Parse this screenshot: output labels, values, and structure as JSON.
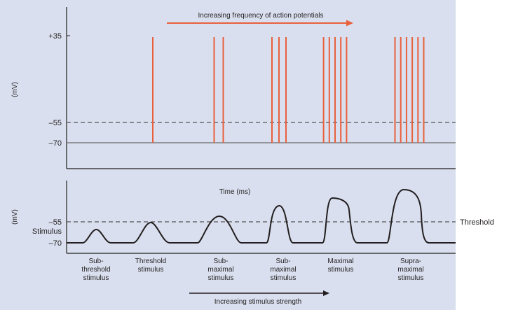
{
  "colors": {
    "panel_bg": "#d9dfee",
    "spike": "#e8603c",
    "arrow_top": "#e8603c",
    "axis": "#231f20",
    "dashed": "#555555",
    "baseline": "#6a6a6a",
    "curve": "#231f20"
  },
  "top_panel": {
    "y_label": "(mV)",
    "ticks": [
      "+35",
      "–55",
      "–70"
    ],
    "arrow_caption": "Increasing frequency of action potentials",
    "spike_groups": [
      1,
      2,
      3,
      5,
      6
    ]
  },
  "bottom_panel": {
    "y_label": "(mV)",
    "ticks": [
      "–55",
      "–70"
    ],
    "stimulus_label": "Stimulus",
    "time_label": "Time (ms)",
    "threshold_label": "Threshold",
    "categories": [
      [
        "Sub-",
        "threshold",
        "stimulus"
      ],
      [
        "Threshold",
        "stimulus"
      ],
      [
        "Sub-",
        "maximal",
        "stimulus"
      ],
      [
        "Sub-",
        "maximal",
        "stimulus"
      ],
      [
        "Maximal",
        "stimulus"
      ],
      [
        "Supra-",
        "maximal",
        "stimulus"
      ]
    ],
    "arrow_caption": "Increasing stimulus strength"
  }
}
